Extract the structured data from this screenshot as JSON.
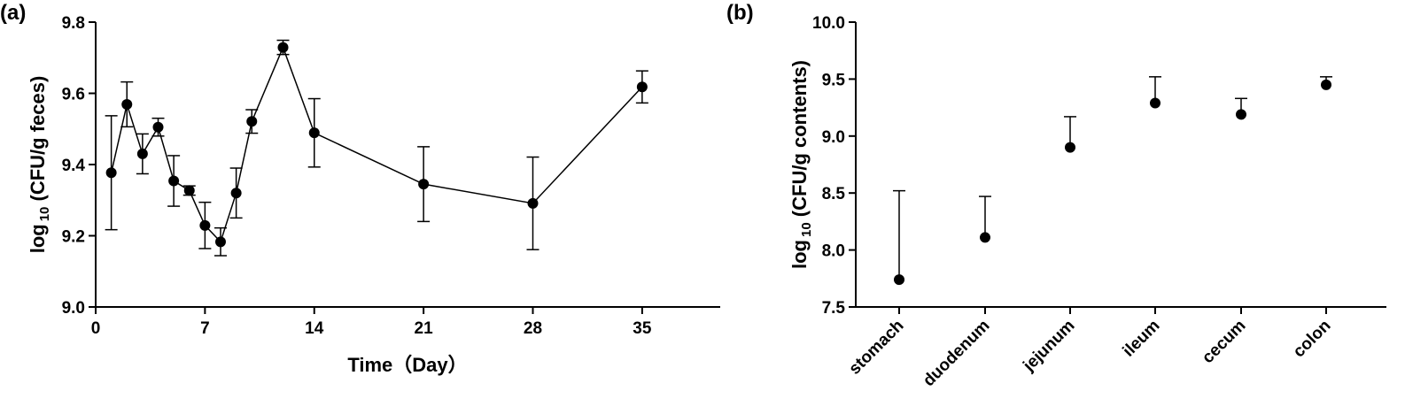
{
  "chart_data": [
    {
      "type": "line",
      "panel_label": "(a)",
      "xlabel": "Time（Day）",
      "ylabel_prefix": "log",
      "ylabel_sub": "10",
      "ylabel_suffix": " (CFU/g feces)",
      "xlim": [
        0,
        40
      ],
      "ylim": [
        9.0,
        9.8
      ],
      "xticks": [
        0,
        7,
        14,
        21,
        28,
        35
      ],
      "yticks": [
        9.0,
        9.2,
        9.4,
        9.6,
        9.8
      ],
      "ytick_labels": [
        "9.0",
        "9.2",
        "9.4",
        "9.6",
        "9.8"
      ],
      "grid": false,
      "x": [
        1,
        2,
        3,
        4,
        5,
        6,
        7,
        8,
        9,
        10,
        12,
        14,
        21,
        28,
        35
      ],
      "y": [
        9.377,
        9.569,
        9.43,
        9.505,
        9.354,
        9.327,
        9.229,
        9.183,
        9.32,
        9.521,
        9.729,
        9.489,
        9.345,
        9.291,
        9.618
      ],
      "err": [
        0.16,
        0.063,
        0.056,
        0.025,
        0.071,
        0.013,
        0.065,
        0.039,
        0.07,
        0.033,
        0.02,
        0.096,
        0.105,
        0.13,
        0.045
      ]
    },
    {
      "type": "scatter",
      "panel_label": "(b)",
      "ylabel_prefix": "log",
      "ylabel_sub": "10",
      "ylabel_suffix": " (CFU/g contents)",
      "categories": [
        "stomach",
        "duodenum",
        "jejunum",
        "ileum",
        "cecum",
        "colon"
      ],
      "ylim": [
        7.5,
        10.0
      ],
      "yticks": [
        7.5,
        8.0,
        8.5,
        9.0,
        9.5,
        10.0
      ],
      "ytick_labels": [
        "7.5",
        "8.0",
        "8.5",
        "9.0",
        "9.5",
        "10.0"
      ],
      "grid": false,
      "values": [
        7.74,
        8.11,
        8.9,
        9.29,
        9.19,
        9.45
      ],
      "err_upper": [
        0.78,
        0.36,
        0.27,
        0.23,
        0.14,
        0.07
      ]
    }
  ]
}
